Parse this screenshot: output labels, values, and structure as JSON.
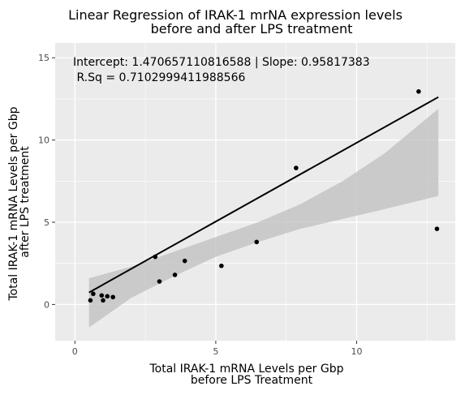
{
  "chart_data": {
    "type": "scatter",
    "title": [
      "Linear Regression of IRAK-1 mrNA expression levels",
      "before and after LPS treatment"
    ],
    "xlabel": [
      "Total IRAK-1 mRNA Levels per Gbp",
      "before LPS Treatment"
    ],
    "ylabel": [
      "Total IRAK-1 mRNA Levels per Gbp",
      "after LPS treatment"
    ],
    "xlim": [
      -0.7,
      13.5
    ],
    "ylim": [
      -2.2,
      15.9
    ],
    "x_ticks": [
      0,
      5,
      10
    ],
    "y_ticks": [
      0,
      5,
      10,
      15
    ],
    "annotation": [
      "Intercept: 1.470657110816588 | Slope: 0.95817383",
      " R.Sq = 0.7102999411988566"
    ],
    "regression": {
      "intercept": 1.470657110816588,
      "slope": 0.95817383,
      "x_range": [
        0.5,
        12.9
      ]
    },
    "confidence_band": {
      "x": [
        0.5,
        2.0,
        3.5,
        5.0,
        6.5,
        8.0,
        9.5,
        11.0,
        12.9
      ],
      "lower": [
        -1.4,
        0.4,
        1.7,
        2.9,
        3.8,
        4.6,
        5.2,
        5.8,
        6.6
      ],
      "upper": [
        1.6,
        2.3,
        3.2,
        4.1,
        5.0,
        6.1,
        7.5,
        9.2,
        11.9
      ]
    },
    "points": [
      {
        "x": 0.55,
        "y": 0.25
      },
      {
        "x": 0.65,
        "y": 0.65
      },
      {
        "x": 0.95,
        "y": 0.55
      },
      {
        "x": 1.0,
        "y": 0.25
      },
      {
        "x": 1.15,
        "y": 0.5
      },
      {
        "x": 1.35,
        "y": 0.45
      },
      {
        "x": 2.85,
        "y": 2.9
      },
      {
        "x": 3.0,
        "y": 1.4
      },
      {
        "x": 3.55,
        "y": 1.8
      },
      {
        "x": 3.9,
        "y": 2.65
      },
      {
        "x": 5.2,
        "y": 2.35
      },
      {
        "x": 6.45,
        "y": 3.8
      },
      {
        "x": 7.85,
        "y": 8.3
      },
      {
        "x": 12.2,
        "y": 12.95
      },
      {
        "x": 12.85,
        "y": 4.6
      }
    ],
    "grid": true,
    "legend": "none",
    "colors": {
      "panel": "#ebebeb",
      "grid": "#ffffff",
      "band": "#bfbfbf",
      "line": "#000000",
      "point": "#000000"
    }
  }
}
